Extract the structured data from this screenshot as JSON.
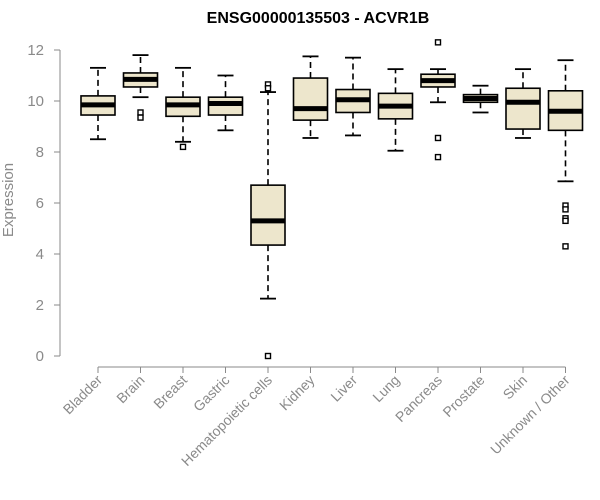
{
  "chart_data": {
    "type": "boxplot",
    "title": "ENSG00000135503 - ACVR1B",
    "xlabel": "",
    "ylabel": "Expression",
    "ylim": [
      0,
      12
    ],
    "yticks": [
      0,
      2,
      4,
      6,
      8,
      10,
      12
    ],
    "grid": false,
    "box_fill": "#ede6cc",
    "box_stroke": "#000000",
    "axis_color": "#8a8a8a",
    "categories": [
      "Bladder",
      "Brain",
      "Breast",
      "Gastric",
      "Hematopoietic cells",
      "Kidney",
      "Liver",
      "Lung",
      "Pancreas",
      "Prostate",
      "Skin",
      "Unknown / Other"
    ],
    "boxes": [
      {
        "category": "Bladder",
        "whisker_low": 8.5,
        "q1": 9.45,
        "median": 9.85,
        "q3": 10.2,
        "whisker_high": 11.3,
        "outliers": []
      },
      {
        "category": "Brain",
        "whisker_low": 10.15,
        "q1": 10.55,
        "median": 10.85,
        "q3": 11.1,
        "whisker_high": 11.8,
        "outliers": [
          9.55,
          9.35
        ]
      },
      {
        "category": "Breast",
        "whisker_low": 8.4,
        "q1": 9.4,
        "median": 9.85,
        "q3": 10.15,
        "whisker_high": 11.3,
        "outliers": [
          8.2
        ]
      },
      {
        "category": "Gastric",
        "whisker_low": 8.85,
        "q1": 9.45,
        "median": 9.9,
        "q3": 10.15,
        "whisker_high": 11.0,
        "outliers": []
      },
      {
        "category": "Hematopoietic cells",
        "whisker_low": 2.25,
        "q1": 4.35,
        "median": 5.3,
        "q3": 6.7,
        "whisker_high": 10.35,
        "outliers": [
          10.65,
          10.5,
          0.0
        ]
      },
      {
        "category": "Kidney",
        "whisker_low": 8.55,
        "q1": 9.25,
        "median": 9.7,
        "q3": 10.9,
        "whisker_high": 11.75,
        "outliers": []
      },
      {
        "category": "Liver",
        "whisker_low": 8.65,
        "q1": 9.55,
        "median": 10.05,
        "q3": 10.45,
        "whisker_high": 11.7,
        "outliers": []
      },
      {
        "category": "Lung",
        "whisker_low": 8.05,
        "q1": 9.3,
        "median": 9.8,
        "q3": 10.3,
        "whisker_high": 11.25,
        "outliers": []
      },
      {
        "category": "Pancreas",
        "whisker_low": 9.95,
        "q1": 10.55,
        "median": 10.8,
        "q3": 11.05,
        "whisker_high": 11.25,
        "outliers": [
          12.3,
          8.55,
          7.8
        ]
      },
      {
        "category": "Prostate",
        "whisker_low": 9.55,
        "q1": 9.95,
        "median": 10.1,
        "q3": 10.25,
        "whisker_high": 10.6,
        "outliers": []
      },
      {
        "category": "Skin",
        "whisker_low": 8.55,
        "q1": 8.9,
        "median": 9.95,
        "q3": 10.5,
        "whisker_high": 11.25,
        "outliers": []
      },
      {
        "category": "Unknown / Other",
        "whisker_low": 6.85,
        "q1": 8.85,
        "median": 9.6,
        "q3": 10.4,
        "whisker_high": 11.6,
        "outliers": [
          5.9,
          5.75,
          5.4,
          5.3,
          4.3
        ]
      }
    ]
  }
}
